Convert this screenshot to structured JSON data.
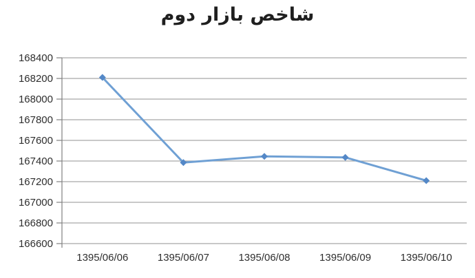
{
  "chart_data": {
    "type": "line",
    "title": "شاخص بازار دوم",
    "categories": [
      "1395/06/06",
      "1395/06/07",
      "1395/06/08",
      "1395/06/09",
      "1395/06/10"
    ],
    "series": [
      {
        "name": "شاخص بازار دوم",
        "values": [
          168210,
          167385,
          167445,
          167435,
          167210
        ]
      }
    ],
    "ylim": [
      166600,
      168400
    ],
    "ytick_step": 200,
    "yticks": [
      168400,
      168200,
      168000,
      167800,
      167600,
      167400,
      167200,
      167000,
      166800,
      166600
    ],
    "xlabel": "",
    "ylabel": "",
    "grid": "horizontal",
    "legend": "none",
    "marker": "diamond",
    "colors": {
      "line": "#6FA0D4",
      "marker": "#5488C7",
      "gridline": "#A6A6A6",
      "axis": "#808080",
      "tick_text": "#2e2e2e",
      "title_text": "#1f1f1f",
      "background": "#ffffff"
    }
  }
}
